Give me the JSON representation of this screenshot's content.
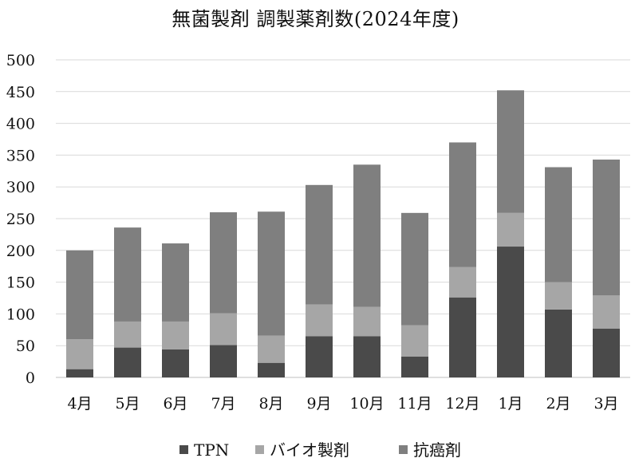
{
  "chart_data": {
    "type": "bar",
    "stacked": true,
    "title": "無菌製剤 調製薬剤数(2024年度)",
    "xlabel": "",
    "ylabel": "",
    "categories": [
      "4月",
      "5月",
      "6月",
      "7月",
      "8月",
      "9月",
      "10月",
      "11月",
      "12月",
      "1月",
      "2月",
      "3月"
    ],
    "series": [
      {
        "name": "TPN",
        "color": "#4a4a4a",
        "values": [
          13,
          47,
          44,
          51,
          23,
          65,
          65,
          33,
          126,
          206,
          107,
          77
        ]
      },
      {
        "name": "バイオ製剤",
        "color": "#a6a6a6",
        "values": [
          47,
          41,
          44,
          50,
          43,
          50,
          46,
          49,
          48,
          53,
          43,
          52
        ]
      },
      {
        "name": "抗癌剤",
        "color": "#7f7f7f",
        "values": [
          140,
          148,
          123,
          159,
          195,
          188,
          224,
          177,
          196,
          193,
          181,
          214
        ]
      }
    ],
    "ylim": [
      0,
      500
    ],
    "yticks": [
      0,
      50,
      100,
      150,
      200,
      250,
      300,
      350,
      400,
      450,
      500
    ],
    "grid": true,
    "legend": "bottom"
  }
}
